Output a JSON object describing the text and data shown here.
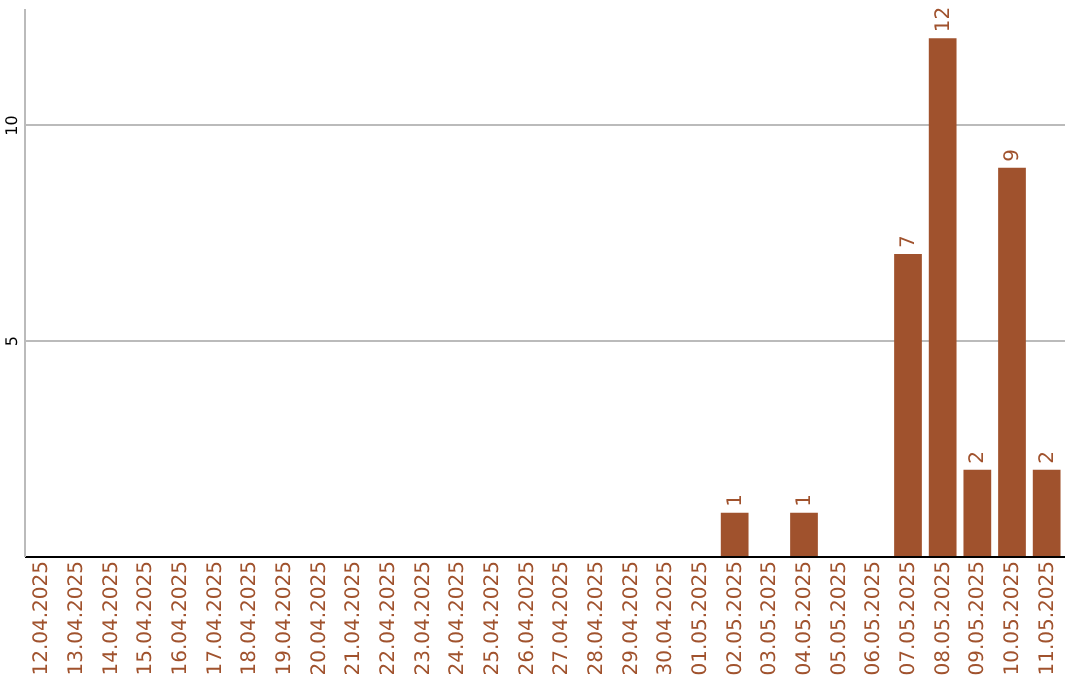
{
  "chart_data": {
    "type": "bar",
    "categories": [
      "12.04.2025",
      "13.04.2025",
      "14.04.2025",
      "15.04.2025",
      "16.04.2025",
      "17.04.2025",
      "18.04.2025",
      "19.04.2025",
      "20.04.2025",
      "21.04.2025",
      "22.04.2025",
      "23.04.2025",
      "24.04.2025",
      "25.04.2025",
      "26.04.2025",
      "27.04.2025",
      "28.04.2025",
      "29.04.2025",
      "30.04.2025",
      "01.05.2025",
      "02.05.2025",
      "03.05.2025",
      "04.05.2025",
      "05.05.2025",
      "06.05.2025",
      "07.05.2025",
      "08.05.2025",
      "09.05.2025",
      "10.05.2025",
      "11.05.2025"
    ],
    "values": [
      0,
      0,
      0,
      0,
      0,
      0,
      0,
      0,
      0,
      0,
      0,
      0,
      0,
      0,
      0,
      0,
      0,
      0,
      0,
      0,
      1,
      0,
      1,
      0,
      0,
      7,
      12,
      2,
      9,
      2
    ],
    "value_labels": [
      null,
      null,
      null,
      null,
      null,
      null,
      null,
      null,
      null,
      null,
      null,
      null,
      null,
      null,
      null,
      null,
      null,
      null,
      null,
      null,
      "1",
      null,
      "1",
      null,
      null,
      "7",
      "12",
      "2",
      "9",
      "2"
    ],
    "color": "#a0522d",
    "ylim": [
      0,
      12.7
    ],
    "yticks": [
      5,
      10
    ],
    "grid": "y"
  }
}
